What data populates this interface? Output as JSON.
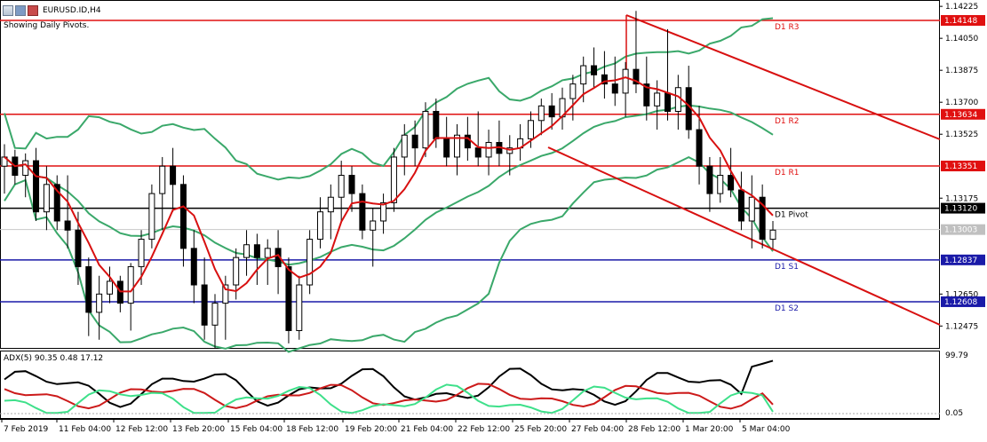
{
  "header": {
    "symbol_timeframe": "EURUSD.ID,H4",
    "subtitle": "Showing Daily Pivots.",
    "icons": [
      "chart-window-icon",
      "bars-icon",
      "color-icon"
    ]
  },
  "price_axis": {
    "labels": [
      "1.14225",
      "1.14050",
      "1.13875",
      "1.13700",
      "1.13525",
      "1.13175",
      "1.12650",
      "1.12475"
    ],
    "min": 1.1236,
    "max": 1.1425,
    "current_price": "1.13003"
  },
  "pivots": [
    {
      "name": "D1 R3",
      "value": "1.14148",
      "color": "#e01010"
    },
    {
      "name": "D1 R2",
      "value": "1.13634",
      "color": "#e01010"
    },
    {
      "name": "D1 R1",
      "value": "1.13351",
      "color": "#e01010"
    },
    {
      "name": "D1 Pivot",
      "value": "1.13120",
      "color": "#000000"
    },
    {
      "name": "D1 S1",
      "value": "1.12837",
      "color": "#1a1aa8"
    },
    {
      "name": "D1 S2",
      "value": "1.12608",
      "color": "#1a1aa8"
    }
  ],
  "time_axis": [
    "7 Feb 2019",
    "11 Feb 04:00",
    "12 Feb 12:00",
    "13 Feb 20:00",
    "15 Feb 04:00",
    "18 Feb 12:00",
    "19 Feb 20:00",
    "21 Feb 04:00",
    "22 Feb 12:00",
    "25 Feb 20:00",
    "27 Feb 04:00",
    "28 Feb 12:00",
    "1 Mar 20:00",
    "5 Mar 04:00"
  ],
  "indicator": {
    "label": "ADX(5) 90.35 0.48 17.12",
    "scale_top": "99.79",
    "scale_bottom": "0.05",
    "colors": {
      "adx": "#000000",
      "plus_di": "#cc1a1a",
      "minus_di": "#3ee08a"
    }
  },
  "colors": {
    "bull": "#ffffff",
    "bear": "#000000",
    "bollinger": "#3aa86a",
    "ma": "#d81010",
    "channel": "#d81010",
    "axis_box": "#d81010"
  },
  "chart_data": {
    "type": "candlestick",
    "symbol": "EURUSD.ID",
    "timeframe": "H4",
    "ylim": [
      1.1236,
      1.1425
    ],
    "ohlc": [
      {
        "o": 1.1335,
        "h": 1.1347,
        "l": 1.132,
        "c": 1.134
      },
      {
        "o": 1.134,
        "h": 1.1344,
        "l": 1.1325,
        "c": 1.133
      },
      {
        "o": 1.133,
        "h": 1.1342,
        "l": 1.1318,
        "c": 1.1338
      },
      {
        "o": 1.1338,
        "h": 1.1345,
        "l": 1.1305,
        "c": 1.131
      },
      {
        "o": 1.131,
        "h": 1.1335,
        "l": 1.13,
        "c": 1.1325
      },
      {
        "o": 1.1325,
        "h": 1.133,
        "l": 1.13,
        "c": 1.1305
      },
      {
        "o": 1.1305,
        "h": 1.133,
        "l": 1.129,
        "c": 1.13
      },
      {
        "o": 1.13,
        "h": 1.131,
        "l": 1.127,
        "c": 1.128
      },
      {
        "o": 1.128,
        "h": 1.1285,
        "l": 1.1242,
        "c": 1.1255
      },
      {
        "o": 1.1255,
        "h": 1.1275,
        "l": 1.124,
        "c": 1.1265
      },
      {
        "o": 1.1265,
        "h": 1.128,
        "l": 1.126,
        "c": 1.1272
      },
      {
        "o": 1.1272,
        "h": 1.1275,
        "l": 1.1255,
        "c": 1.126
      },
      {
        "o": 1.126,
        "h": 1.1282,
        "l": 1.1245,
        "c": 1.128
      },
      {
        "o": 1.128,
        "h": 1.13,
        "l": 1.127,
        "c": 1.1295
      },
      {
        "o": 1.1295,
        "h": 1.1325,
        "l": 1.129,
        "c": 1.132
      },
      {
        "o": 1.132,
        "h": 1.134,
        "l": 1.13,
        "c": 1.1335
      },
      {
        "o": 1.1335,
        "h": 1.1345,
        "l": 1.131,
        "c": 1.1325
      },
      {
        "o": 1.1325,
        "h": 1.133,
        "l": 1.128,
        "c": 1.129
      },
      {
        "o": 1.129,
        "h": 1.13,
        "l": 1.126,
        "c": 1.127
      },
      {
        "o": 1.127,
        "h": 1.1285,
        "l": 1.124,
        "c": 1.1248
      },
      {
        "o": 1.1248,
        "h": 1.1265,
        "l": 1.1235,
        "c": 1.126
      },
      {
        "o": 1.126,
        "h": 1.1275,
        "l": 1.124,
        "c": 1.127
      },
      {
        "o": 1.127,
        "h": 1.129,
        "l": 1.1262,
        "c": 1.1285
      },
      {
        "o": 1.1285,
        "h": 1.13,
        "l": 1.1275,
        "c": 1.1292
      },
      {
        "o": 1.1292,
        "h": 1.1298,
        "l": 1.127,
        "c": 1.1285
      },
      {
        "o": 1.1285,
        "h": 1.1295,
        "l": 1.127,
        "c": 1.129
      },
      {
        "o": 1.129,
        "h": 1.13,
        "l": 1.1265,
        "c": 1.128
      },
      {
        "o": 1.128,
        "h": 1.1285,
        "l": 1.1238,
        "c": 1.1245
      },
      {
        "o": 1.1245,
        "h": 1.1275,
        "l": 1.124,
        "c": 1.127
      },
      {
        "o": 1.127,
        "h": 1.13,
        "l": 1.1265,
        "c": 1.1295
      },
      {
        "o": 1.1295,
        "h": 1.1318,
        "l": 1.129,
        "c": 1.131
      },
      {
        "o": 1.131,
        "h": 1.1325,
        "l": 1.1295,
        "c": 1.1318
      },
      {
        "o": 1.1318,
        "h": 1.1338,
        "l": 1.1305,
        "c": 1.133
      },
      {
        "o": 1.133,
        "h": 1.1335,
        "l": 1.131,
        "c": 1.132
      },
      {
        "o": 1.132,
        "h": 1.1325,
        "l": 1.1295,
        "c": 1.13
      },
      {
        "o": 1.13,
        "h": 1.1312,
        "l": 1.128,
        "c": 1.1305
      },
      {
        "o": 1.1305,
        "h": 1.132,
        "l": 1.1298,
        "c": 1.1315
      },
      {
        "o": 1.1315,
        "h": 1.1345,
        "l": 1.131,
        "c": 1.134
      },
      {
        "o": 1.134,
        "h": 1.1358,
        "l": 1.133,
        "c": 1.1352
      },
      {
        "o": 1.1352,
        "h": 1.136,
        "l": 1.1335,
        "c": 1.1345
      },
      {
        "o": 1.1345,
        "h": 1.137,
        "l": 1.134,
        "c": 1.1365
      },
      {
        "o": 1.1365,
        "h": 1.1372,
        "l": 1.1345,
        "c": 1.135
      },
      {
        "o": 1.135,
        "h": 1.1362,
        "l": 1.1335,
        "c": 1.134
      },
      {
        "o": 1.134,
        "h": 1.1358,
        "l": 1.133,
        "c": 1.1352
      },
      {
        "o": 1.1352,
        "h": 1.1362,
        "l": 1.1338,
        "c": 1.1345
      },
      {
        "o": 1.1345,
        "h": 1.1365,
        "l": 1.1335,
        "c": 1.134
      },
      {
        "o": 1.134,
        "h": 1.1355,
        "l": 1.133,
        "c": 1.1348
      },
      {
        "o": 1.1348,
        "h": 1.136,
        "l": 1.1335,
        "c": 1.1342
      },
      {
        "o": 1.1342,
        "h": 1.1352,
        "l": 1.133,
        "c": 1.1345
      },
      {
        "o": 1.1345,
        "h": 1.1358,
        "l": 1.1338,
        "c": 1.135
      },
      {
        "o": 1.135,
        "h": 1.1365,
        "l": 1.1345,
        "c": 1.136
      },
      {
        "o": 1.136,
        "h": 1.1372,
        "l": 1.1352,
        "c": 1.1368
      },
      {
        "o": 1.1368,
        "h": 1.1375,
        "l": 1.1355,
        "c": 1.1362
      },
      {
        "o": 1.1362,
        "h": 1.1378,
        "l": 1.1355,
        "c": 1.1372
      },
      {
        "o": 1.1372,
        "h": 1.1385,
        "l": 1.136,
        "c": 1.138
      },
      {
        "o": 1.138,
        "h": 1.1395,
        "l": 1.137,
        "c": 1.139
      },
      {
        "o": 1.139,
        "h": 1.14,
        "l": 1.1378,
        "c": 1.1385
      },
      {
        "o": 1.1385,
        "h": 1.1398,
        "l": 1.1372,
        "c": 1.138
      },
      {
        "o": 1.138,
        "h": 1.1395,
        "l": 1.1368,
        "c": 1.1375
      },
      {
        "o": 1.1375,
        "h": 1.1392,
        "l": 1.1362,
        "c": 1.1388
      },
      {
        "o": 1.1388,
        "h": 1.142,
        "l": 1.1375,
        "c": 1.138
      },
      {
        "o": 1.138,
        "h": 1.1395,
        "l": 1.136,
        "c": 1.1368
      },
      {
        "o": 1.1368,
        "h": 1.1382,
        "l": 1.1355,
        "c": 1.1375
      },
      {
        "o": 1.1375,
        "h": 1.141,
        "l": 1.136,
        "c": 1.1365
      },
      {
        "o": 1.1365,
        "h": 1.1385,
        "l": 1.1355,
        "c": 1.1378
      },
      {
        "o": 1.1378,
        "h": 1.139,
        "l": 1.135,
        "c": 1.1355
      },
      {
        "o": 1.1355,
        "h": 1.1368,
        "l": 1.1325,
        "c": 1.1335
      },
      {
        "o": 1.1335,
        "h": 1.134,
        "l": 1.131,
        "c": 1.132
      },
      {
        "o": 1.132,
        "h": 1.134,
        "l": 1.1315,
        "c": 1.133
      },
      {
        "o": 1.133,
        "h": 1.1345,
        "l": 1.1318,
        "c": 1.1322
      },
      {
        "o": 1.1322,
        "h": 1.1332,
        "l": 1.13,
        "c": 1.1305
      },
      {
        "o": 1.1305,
        "h": 1.133,
        "l": 1.129,
        "c": 1.1318
      },
      {
        "o": 1.1318,
        "h": 1.1325,
        "l": 1.129,
        "c": 1.1295
      },
      {
        "o": 1.1295,
        "h": 1.1305,
        "l": 1.129,
        "c": 1.13
      }
    ],
    "series": [
      {
        "name": "ADX(5)",
        "last": 90.35
      },
      {
        "name": "+DI",
        "last": 0.48
      },
      {
        "name": "-DI",
        "last": 17.12
      }
    ]
  }
}
